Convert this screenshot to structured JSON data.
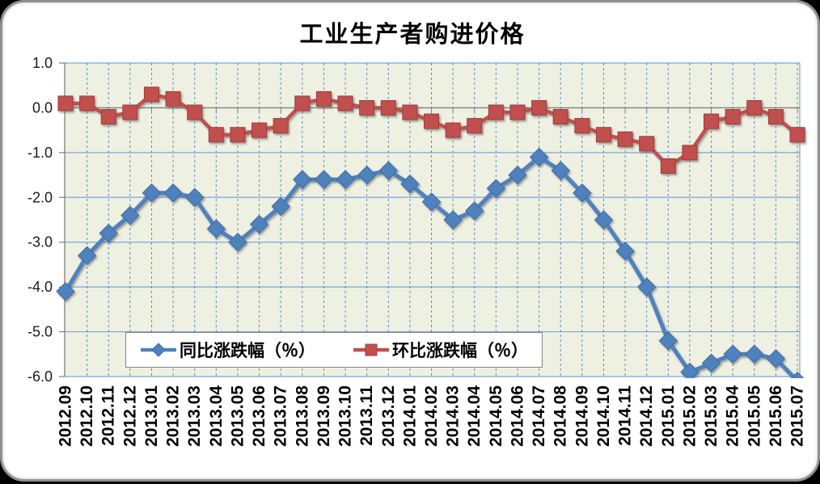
{
  "window": {
    "outer_background": "#000000",
    "card_background": "#ffffff"
  },
  "chart_data": {
    "type": "line",
    "title": "工业生产者购进价格",
    "x": [
      "2012.09",
      "2012.10",
      "2012.11",
      "2012.12",
      "2013.01",
      "2013.02",
      "2013.03",
      "2013.04",
      "2013.05",
      "2013.06",
      "2013.07",
      "2013.08",
      "2013.09",
      "2013.10",
      "2013.11",
      "2013.12",
      "2014.01",
      "2014.02",
      "2014.03",
      "2014.04",
      "2014.05",
      "2014.06",
      "2014.07",
      "2014.08",
      "2014.09",
      "2014.10",
      "2014.11",
      "2014.12",
      "2015.01",
      "2015.02",
      "2015.03",
      "2015.04",
      "2015.05",
      "2015.06",
      "2015.07"
    ],
    "series": [
      {
        "name": "同比涨跌幅（％）",
        "marker": "diamond",
        "color": "#4F81BD",
        "marker_edge": "#3D6CA5",
        "values": [
          -4.1,
          -3.3,
          -2.8,
          -2.4,
          -1.9,
          -1.9,
          -2.0,
          -2.7,
          -3.0,
          -2.6,
          -2.2,
          -1.6,
          -1.6,
          -1.6,
          -1.5,
          -1.4,
          -1.7,
          -2.1,
          -2.5,
          -2.3,
          -1.8,
          -1.5,
          -1.1,
          -1.4,
          -1.9,
          -2.5,
          -3.2,
          -4.0,
          -5.2,
          -5.9,
          -5.7,
          -5.5,
          -5.5,
          -5.6,
          -6.1
        ]
      },
      {
        "name": "环比涨跌幅（％）",
        "marker": "square",
        "color": "#C0504D",
        "marker_edge": "#9E3E3B",
        "values": [
          0.1,
          0.1,
          -0.2,
          -0.1,
          0.3,
          0.2,
          -0.1,
          -0.6,
          -0.6,
          -0.5,
          -0.4,
          0.1,
          0.2,
          0.1,
          0.0,
          0.0,
          -0.1,
          -0.3,
          -0.5,
          -0.4,
          -0.1,
          -0.1,
          0.0,
          -0.2,
          -0.4,
          -0.6,
          -0.7,
          -0.8,
          -1.3,
          -1.0,
          -0.3,
          -0.2,
          0.0,
          -0.2,
          -0.6
        ]
      }
    ],
    "ylim": [
      -6.0,
      1.0
    ],
    "y_ticks": [
      "1.0",
      "0.0",
      "-1.0",
      "-2.0",
      "-3.0",
      "-4.0",
      "-5.0",
      "-6.0"
    ],
    "grid": "horizontal-solid, vertical-dashed",
    "legend_position": "inside-bottom-center",
    "colors": {
      "plot_background": "#EEF0E2",
      "horizontal_grid": "#7FA5D4",
      "vertical_grid": "#4F81BD",
      "zero_axis": "#7F7F7F",
      "tick_label": "#1a1a1a"
    }
  }
}
